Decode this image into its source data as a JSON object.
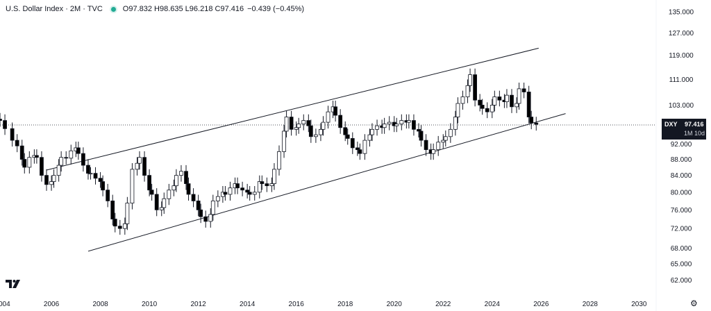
{
  "header": {
    "title": "U.S. Dollar Index · 2M · TVC",
    "ohlc": "O97.832 H98.635 L96.218 C97.416",
    "change": "−0.439 (−0.45%)",
    "status_color": "#22ab94"
  },
  "price_tag": {
    "symbol": "DXY",
    "price": "97.416",
    "countdown": "1M 10d"
  },
  "icons": {
    "logo": "tradingview-logo-icon",
    "settings": "gear-icon"
  },
  "colors": {
    "up_body": "#ffffff",
    "down_body": "#000000",
    "wick": "#131722",
    "trendline": "#131722"
  },
  "chart_data": {
    "type": "candlestick",
    "title": "U.S. Dollar Index · 2M · TVC",
    "interval": "2M",
    "symbol": "DXY",
    "last_price": 97.416,
    "y_scale": "log",
    "y_ticks": [
      62.0,
      65.0,
      68.0,
      72.0,
      76.0,
      80.0,
      84.0,
      88.0,
      92.0,
      103.0,
      111.0,
      119.0,
      127.0,
      135.0
    ],
    "x_ticks": [
      "2004",
      "2006",
      "2008",
      "2010",
      "2012",
      "2014",
      "2016",
      "2018",
      "2020",
      "2022",
      "2024",
      "2026",
      "2028",
      "2030"
    ],
    "x_range": [
      2003.9,
      2030.5
    ],
    "y_range": [
      60.2,
      137.5
    ],
    "trendlines": [
      {
        "name": "upper channel",
        "from": [
          2005.8,
          85.3
        ],
        "to": [
          2025.9,
          121.5
        ]
      },
      {
        "name": "lower channel",
        "from": [
          2007.5,
          67.4
        ],
        "to": [
          2027.0,
          100.5
        ]
      }
    ],
    "series": [
      {
        "name": "U.S. Dollar Index",
        "close_series": [
          [
            2003.9,
            98.5
          ],
          [
            2004.1,
            96.2
          ],
          [
            2004.4,
            93.0
          ],
          [
            2004.6,
            91.5
          ],
          [
            2004.8,
            88.0
          ],
          [
            2004.9,
            86.0
          ],
          [
            2005.1,
            88.5
          ],
          [
            2005.3,
            89.0
          ],
          [
            2005.4,
            88.5
          ],
          [
            2005.6,
            84.0
          ],
          [
            2005.8,
            81.8
          ],
          [
            2006.0,
            82.5
          ],
          [
            2006.1,
            84.0
          ],
          [
            2006.3,
            86.5
          ],
          [
            2006.4,
            88.5
          ],
          [
            2006.6,
            88.3
          ],
          [
            2006.8,
            90.2
          ],
          [
            2007.0,
            91.0
          ],
          [
            2007.1,
            89.5
          ],
          [
            2007.3,
            86.5
          ],
          [
            2007.5,
            84.5
          ],
          [
            2007.6,
            84.5
          ],
          [
            2007.8,
            83.3
          ],
          [
            2008.0,
            82.5
          ],
          [
            2008.1,
            80.5
          ],
          [
            2008.3,
            78.0
          ],
          [
            2008.5,
            74.0
          ],
          [
            2008.6,
            72.5
          ],
          [
            2008.8,
            72.0
          ],
          [
            2009.0,
            73.0
          ],
          [
            2009.1,
            77.5
          ],
          [
            2009.3,
            85.5
          ],
          [
            2009.5,
            87.0
          ],
          [
            2009.6,
            88.5
          ],
          [
            2009.8,
            84.0
          ],
          [
            2010.0,
            80.5
          ],
          [
            2010.1,
            79.5
          ],
          [
            2010.3,
            76.0
          ],
          [
            2010.5,
            76.5
          ],
          [
            2010.6,
            78.5
          ],
          [
            2010.8,
            80.5
          ],
          [
            2011.0,
            81.5
          ],
          [
            2011.1,
            84.0
          ],
          [
            2011.3,
            85.0
          ],
          [
            2011.5,
            82.0
          ],
          [
            2011.6,
            79.5
          ],
          [
            2011.8,
            78.0
          ],
          [
            2012.0,
            76.0
          ],
          [
            2012.1,
            74.5
          ],
          [
            2012.3,
            73.5
          ],
          [
            2012.5,
            75.0
          ],
          [
            2012.6,
            78.0
          ],
          [
            2012.8,
            79.0
          ],
          [
            2013.0,
            80.0
          ],
          [
            2013.1,
            79.5
          ],
          [
            2013.3,
            81.0
          ],
          [
            2013.5,
            82.0
          ],
          [
            2013.6,
            81.0
          ],
          [
            2013.8,
            80.5
          ],
          [
            2014.0,
            80.0
          ],
          [
            2014.1,
            79.5
          ],
          [
            2014.3,
            80.0
          ],
          [
            2014.5,
            82.5
          ],
          [
            2014.6,
            82.0
          ],
          [
            2014.8,
            81.5
          ],
          [
            2015.0,
            82.0
          ],
          [
            2015.1,
            85.5
          ],
          [
            2015.3,
            90.0
          ],
          [
            2015.5,
            95.5
          ],
          [
            2015.6,
            99.5
          ],
          [
            2015.8,
            96.0
          ],
          [
            2016.0,
            96.5
          ],
          [
            2016.1,
            97.5
          ],
          [
            2016.3,
            98.5
          ],
          [
            2016.5,
            97.0
          ],
          [
            2016.6,
            94.0
          ],
          [
            2016.8,
            94.5
          ],
          [
            2017.0,
            96.0
          ],
          [
            2017.1,
            98.0
          ],
          [
            2017.3,
            101.0
          ],
          [
            2017.5,
            102.5
          ],
          [
            2017.6,
            100.0
          ],
          [
            2017.8,
            96.5
          ],
          [
            2018.0,
            94.5
          ],
          [
            2018.1,
            93.5
          ],
          [
            2018.3,
            91.0
          ],
          [
            2018.5,
            90.5
          ],
          [
            2018.6,
            89.5
          ],
          [
            2018.8,
            93.0
          ],
          [
            2019.0,
            94.5
          ],
          [
            2019.1,
            96.0
          ],
          [
            2019.3,
            97.0
          ],
          [
            2019.5,
            96.5
          ],
          [
            2019.6,
            97.5
          ],
          [
            2019.8,
            98.0
          ],
          [
            2020.0,
            97.0
          ],
          [
            2020.1,
            97.5
          ],
          [
            2020.3,
            98.5
          ],
          [
            2020.5,
            98.0
          ],
          [
            2020.6,
            98.5
          ],
          [
            2020.8,
            96.0
          ],
          [
            2021.0,
            95.5
          ],
          [
            2021.1,
            93.0
          ],
          [
            2021.3,
            90.5
          ],
          [
            2021.5,
            89.5
          ],
          [
            2021.6,
            90.5
          ],
          [
            2021.8,
            92.5
          ],
          [
            2022.0,
            93.0
          ],
          [
            2022.1,
            94.0
          ],
          [
            2022.3,
            96.0
          ],
          [
            2022.5,
            99.5
          ],
          [
            2022.6,
            103.5
          ],
          [
            2022.8,
            105.5
          ],
          [
            2023.0,
            109.0
          ],
          [
            2023.1,
            112.5
          ],
          [
            2023.3,
            104.5
          ],
          [
            2023.5,
            103.0
          ],
          [
            2023.6,
            102.0
          ],
          [
            2023.8,
            101.0
          ],
          [
            2024.0,
            103.0
          ],
          [
            2024.1,
            105.5
          ],
          [
            2024.3,
            104.5
          ],
          [
            2024.5,
            104.0
          ],
          [
            2024.6,
            106.0
          ],
          [
            2024.8,
            102.5
          ],
          [
            2025.0,
            103.5
          ],
          [
            2025.1,
            108.0
          ],
          [
            2025.3,
            107.0
          ],
          [
            2025.5,
            99.5
          ],
          [
            2025.6,
            97.8
          ],
          [
            2025.8,
            97.416
          ]
        ]
      }
    ]
  }
}
